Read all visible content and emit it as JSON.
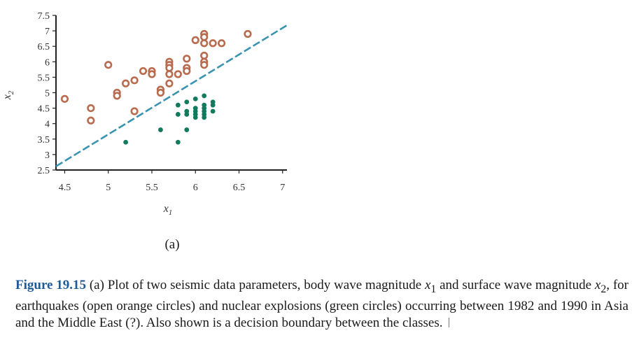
{
  "chart_data": {
    "type": "scatter",
    "title": "",
    "xlabel": "x",
    "xlabel_sub": "1",
    "ylabel": "x",
    "ylabel_sub": "2",
    "xlim": [
      4.4,
      7.05
    ],
    "ylim": [
      2.5,
      7.5
    ],
    "xticks": [
      4.5,
      5,
      5.5,
      6,
      6.5,
      7
    ],
    "xtick_labels": [
      "4.5",
      "5",
      "5.5",
      "6",
      "6.5",
      "7"
    ],
    "yticks": [
      2.5,
      3,
      3.5,
      4,
      4.5,
      5,
      5.5,
      6,
      6.5,
      7,
      7.5
    ],
    "ytick_labels": [
      "2.5",
      "3",
      "3.5",
      "4",
      "4.5",
      "5",
      "5.5",
      "6",
      "6.5",
      "7",
      "7.5"
    ],
    "grid": false,
    "series": [
      {
        "marker": "open-circle",
        "color": "#b86b4e",
        "points": [
          [
            4.5,
            4.8
          ],
          [
            4.8,
            4.5
          ],
          [
            4.8,
            4.1
          ],
          [
            5.0,
            5.9
          ],
          [
            5.1,
            5.0
          ],
          [
            5.1,
            4.9
          ],
          [
            5.2,
            5.3
          ],
          [
            5.3,
            5.4
          ],
          [
            5.3,
            4.4
          ],
          [
            5.4,
            5.7
          ],
          [
            5.5,
            5.7
          ],
          [
            5.5,
            5.6
          ],
          [
            5.6,
            5.1
          ],
          [
            5.6,
            5.0
          ],
          [
            5.7,
            6.0
          ],
          [
            5.7,
            5.9
          ],
          [
            5.7,
            5.8
          ],
          [
            5.7,
            5.6
          ],
          [
            5.7,
            5.3
          ],
          [
            5.8,
            5.6
          ],
          [
            5.9,
            6.1
          ],
          [
            5.9,
            5.8
          ],
          [
            5.9,
            5.7
          ],
          [
            6.0,
            6.7
          ],
          [
            6.1,
            6.9
          ],
          [
            6.1,
            6.8
          ],
          [
            6.1,
            6.6
          ],
          [
            6.1,
            6.2
          ],
          [
            6.1,
            6.0
          ],
          [
            6.1,
            5.9
          ],
          [
            6.2,
            6.6
          ],
          [
            6.3,
            6.6
          ],
          [
            6.6,
            6.9
          ]
        ]
      },
      {
        "marker": "filled-circle",
        "color": "#137a5e",
        "points": [
          [
            5.2,
            3.4
          ],
          [
            5.6,
            3.8
          ],
          [
            5.8,
            3.4
          ],
          [
            5.9,
            3.8
          ],
          [
            5.8,
            4.6
          ],
          [
            5.8,
            4.3
          ],
          [
            5.9,
            4.7
          ],
          [
            5.9,
            4.4
          ],
          [
            5.9,
            4.3
          ],
          [
            6.0,
            4.8
          ],
          [
            6.0,
            4.5
          ],
          [
            6.0,
            4.4
          ],
          [
            6.0,
            4.3
          ],
          [
            6.0,
            4.2
          ],
          [
            6.1,
            4.9
          ],
          [
            6.1,
            4.6
          ],
          [
            6.1,
            4.5
          ],
          [
            6.1,
            4.4
          ],
          [
            6.1,
            4.3
          ],
          [
            6.1,
            4.2
          ],
          [
            6.2,
            4.7
          ],
          [
            6.2,
            4.6
          ],
          [
            6.2,
            4.4
          ]
        ]
      }
    ],
    "boundary": {
      "style": "dashed",
      "color": "#3a93b0",
      "points": [
        [
          4.4,
          2.62
        ],
        [
          7.05,
          7.18
        ]
      ]
    }
  },
  "subcaption": "(a)",
  "caption": {
    "label": "Figure 19.15",
    "text_1": " (a) Plot of two seismic data parameters, body wave magnitude ",
    "math_1": "x",
    "math_1_sub": "1",
    "text_2": " and surface wave magnitude ",
    "math_2": "x",
    "math_2_sub": "2",
    "text_3": ", for earthquakes (open orange circles) and nuclear explosions (green circles) occurring between 1982 and 1990 in Asia and the Middle East (?). Also shown is a decision boundary between the classes."
  }
}
